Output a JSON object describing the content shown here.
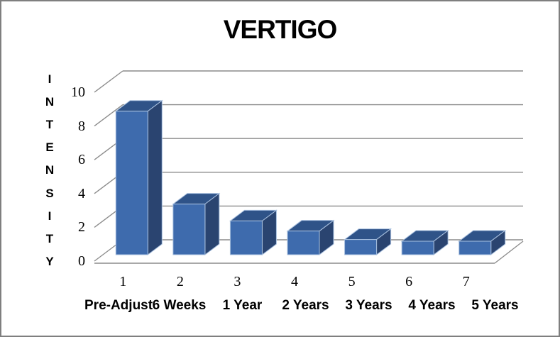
{
  "frame": {
    "border_color": "#7f7f7f",
    "background": "#ffffff"
  },
  "chart_data": {
    "type": "bar",
    "projection": "3d",
    "title": "VERTIGO",
    "ylabel": "INTENSITY",
    "xlabel": "",
    "categories": [
      "1",
      "2",
      "3",
      "4",
      "5",
      "6",
      "7"
    ],
    "category_labels": [
      "Pre-Adjust",
      "6 Weeks",
      "1 Year",
      "2 Years",
      "3 Years",
      "4 Years",
      "5 Years"
    ],
    "values": [
      8.5,
      3,
      2,
      1.4,
      0.9,
      0.8,
      0.8
    ],
    "y_ticks": [
      0,
      2,
      4,
      6,
      8,
      10
    ],
    "ylim": [
      0,
      10
    ],
    "grid": true,
    "legend": "none",
    "bar_color_front": "#3e6bad",
    "bar_color_top": "#2f5388",
    "bar_color_side": "#2a4470",
    "bar_edge_color": "#a7bfde",
    "gridline_color": "#8c8c8c",
    "title_color": "#000000"
  }
}
